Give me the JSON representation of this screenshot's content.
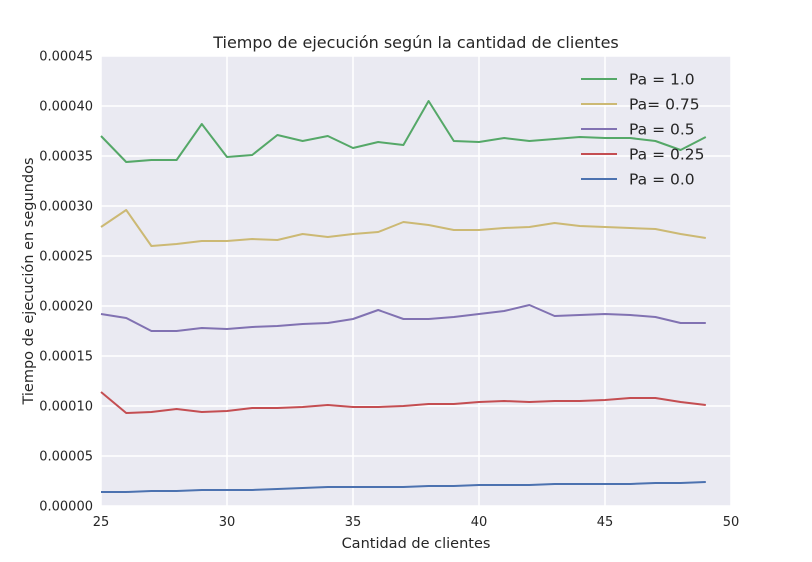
{
  "chart_data": {
    "type": "line",
    "title": "Tiempo de ejecución según la cantidad de clientes",
    "xlabel": "Cantidad de clientes",
    "ylabel": "Tiempo de ejecución en segundos",
    "xlim": [
      25,
      50
    ],
    "ylim": [
      0,
      0.00045
    ],
    "xticks": [
      "25",
      "30",
      "35",
      "40",
      "45",
      "50"
    ],
    "yticks": [
      "0.00000",
      "0.00005",
      "0.00010",
      "0.00015",
      "0.00020",
      "0.00025",
      "0.00030",
      "0.00035",
      "0.00040",
      "0.00045"
    ],
    "grid": true,
    "legend_position": "top-right",
    "x": [
      25,
      26,
      27,
      28,
      29,
      30,
      31,
      32,
      33,
      34,
      35,
      36,
      37,
      38,
      39,
      40,
      41,
      42,
      43,
      44,
      45,
      46,
      47,
      48,
      49
    ],
    "series": [
      {
        "name": "Pa = 1.0",
        "color": "#55a868",
        "values": [
          0.00037,
          0.000344,
          0.000346,
          0.000346,
          0.000382,
          0.000349,
          0.000351,
          0.000371,
          0.000365,
          0.00037,
          0.000358,
          0.000364,
          0.000361,
          0.000405,
          0.000365,
          0.000364,
          0.000368,
          0.000365,
          0.000367,
          0.000369,
          0.000368,
          0.000368,
          0.000365,
          0.000356,
          0.000369
        ]
      },
      {
        "name": "Pa= 0.75",
        "color": "#ccb974",
        "values": [
          0.000279,
          0.000296,
          0.00026,
          0.000262,
          0.000265,
          0.000265,
          0.000267,
          0.000266,
          0.000272,
          0.000269,
          0.000272,
          0.000274,
          0.000284,
          0.000281,
          0.000276,
          0.000276,
          0.000278,
          0.000279,
          0.000283,
          0.00028,
          0.000279,
          0.000278,
          0.000277,
          0.000272,
          0.000268
        ]
      },
      {
        "name": "Pa = 0.5",
        "color": "#8172b2",
        "values": [
          0.000192,
          0.000188,
          0.000175,
          0.000175,
          0.000178,
          0.000177,
          0.000179,
          0.00018,
          0.000182,
          0.000183,
          0.000187,
          0.000196,
          0.000187,
          0.000187,
          0.000189,
          0.000192,
          0.000195,
          0.000201,
          0.00019,
          0.000191,
          0.000192,
          0.000191,
          0.000189,
          0.000183,
          0.000183
        ]
      },
      {
        "name": "Pa = 0.25",
        "color": "#c44e52",
        "values": [
          0.000114,
          9.3e-05,
          9.4e-05,
          9.7e-05,
          9.4e-05,
          9.5e-05,
          9.8e-05,
          9.8e-05,
          9.9e-05,
          0.000101,
          9.9e-05,
          9.9e-05,
          0.0001,
          0.000102,
          0.000102,
          0.000104,
          0.000105,
          0.000104,
          0.000105,
          0.000105,
          0.000106,
          0.000108,
          0.000108,
          0.000104,
          0.000101
        ]
      },
      {
        "name": "Pa = 0.0",
        "color": "#4c72b0",
        "values": [
          1.4e-05,
          1.4e-05,
          1.5e-05,
          1.5e-05,
          1.6e-05,
          1.6e-05,
          1.6e-05,
          1.7e-05,
          1.8e-05,
          1.9e-05,
          1.9e-05,
          1.9e-05,
          1.9e-05,
          2e-05,
          2e-05,
          2.1e-05,
          2.1e-05,
          2.1e-05,
          2.2e-05,
          2.2e-05,
          2.2e-05,
          2.2e-05,
          2.3e-05,
          2.3e-05,
          2.4e-05
        ]
      }
    ]
  },
  "colors": {
    "plot_background": "#eaeaf2",
    "grid": "#ffffff",
    "text": "#262626"
  }
}
